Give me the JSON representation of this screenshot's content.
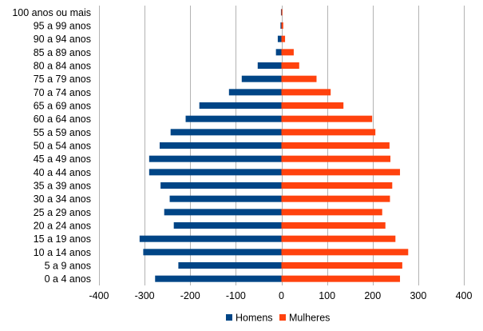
{
  "chart_data": {
    "type": "bar",
    "orientation": "horizontal",
    "categories": [
      "0 a 4 anos",
      "5 a 9 anos",
      "10 a 14 anos",
      "15 a 19 anos",
      "20 a 24 anos",
      "25 a 29 anos",
      "30 a 34 anos",
      "35 a 39 anos",
      "40 a 44 anos",
      "45 a 49 anos",
      "50 a 54 anos",
      "55 a 59 anos",
      "60 a 64 anos",
      "65 a 69 anos",
      "70 a 74 anos",
      "75 a 79 anos",
      "80 a 84 anos",
      "85 a 89 anos",
      "90 a 94 anos",
      "95 a 99 anos",
      "100 anos ou mais"
    ],
    "series": [
      {
        "name": "Homens",
        "color": "#004586",
        "values": [
          -277,
          -226,
          -303,
          -311,
          -236,
          -257,
          -245,
          -265,
          -290,
          -290,
          -267,
          -243,
          -210,
          -180,
          -115,
          -87,
          -52,
          -12,
          -8,
          -2,
          -1
        ]
      },
      {
        "name": "Mulheres",
        "color": "#ff420e",
        "values": [
          260,
          265,
          278,
          250,
          228,
          221,
          238,
          243,
          260,
          239,
          237,
          206,
          199,
          136,
          108,
          77,
          39,
          27,
          8,
          4,
          2
        ]
      }
    ],
    "xlim": [
      -400,
      400
    ],
    "xticks": [
      "-400",
      "-300",
      "-200",
      "-100",
      "0",
      "100",
      "200",
      "300",
      "400"
    ],
    "xtick_values": [
      -400,
      -300,
      -200,
      -100,
      0,
      100,
      200,
      300,
      400
    ],
    "grid": "vertical",
    "legend": "bottom",
    "title": "",
    "xlabel": "",
    "ylabel": ""
  }
}
